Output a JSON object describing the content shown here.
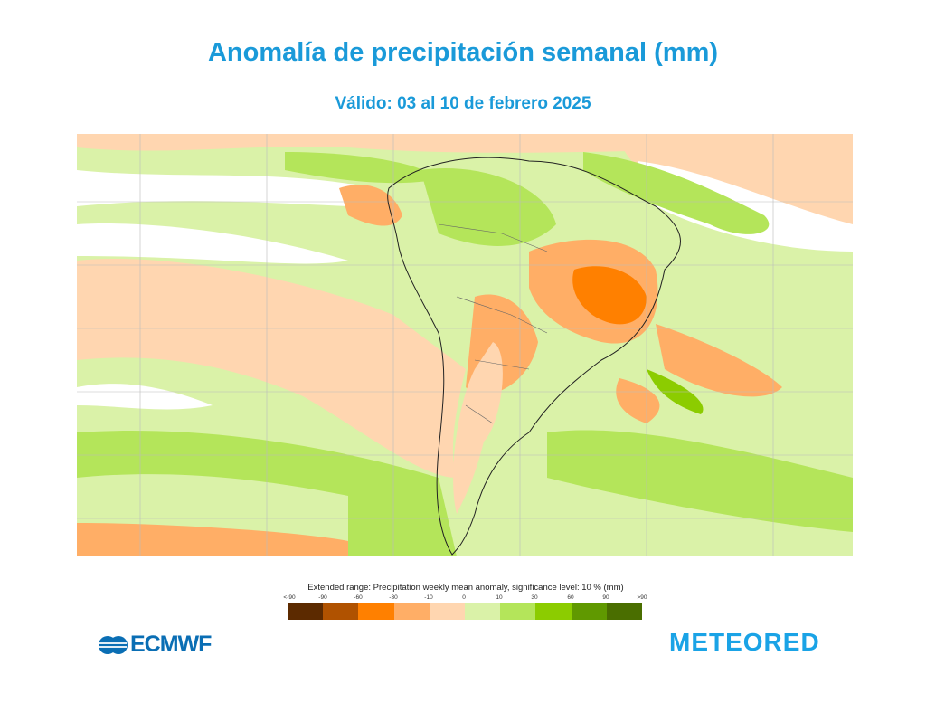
{
  "title": "Anomalía de precipitación semanal (mm)",
  "subtitle": "Válido: 03 al 10 de febrero 2025",
  "legend": {
    "title": "Extended range: Precipitation weekly mean anomaly, significance level: 10 % (mm)",
    "ticks": [
      "<-90",
      "-90",
      "-60",
      "-30",
      "-10",
      "0",
      "10",
      "30",
      "60",
      "90",
      ">90"
    ],
    "colors": [
      "#5c2a00",
      "#b05200",
      "#ff8000",
      "#ffae66",
      "#ffd6b0",
      "#daf2a8",
      "#b4e55a",
      "#8ccc00",
      "#609900",
      "#4a6e00"
    ]
  },
  "logos": {
    "left": "ECMWF",
    "right": "METEORED"
  },
  "map": {
    "region": "South America",
    "land_color": "#ffffff",
    "border_color": "#555555"
  }
}
